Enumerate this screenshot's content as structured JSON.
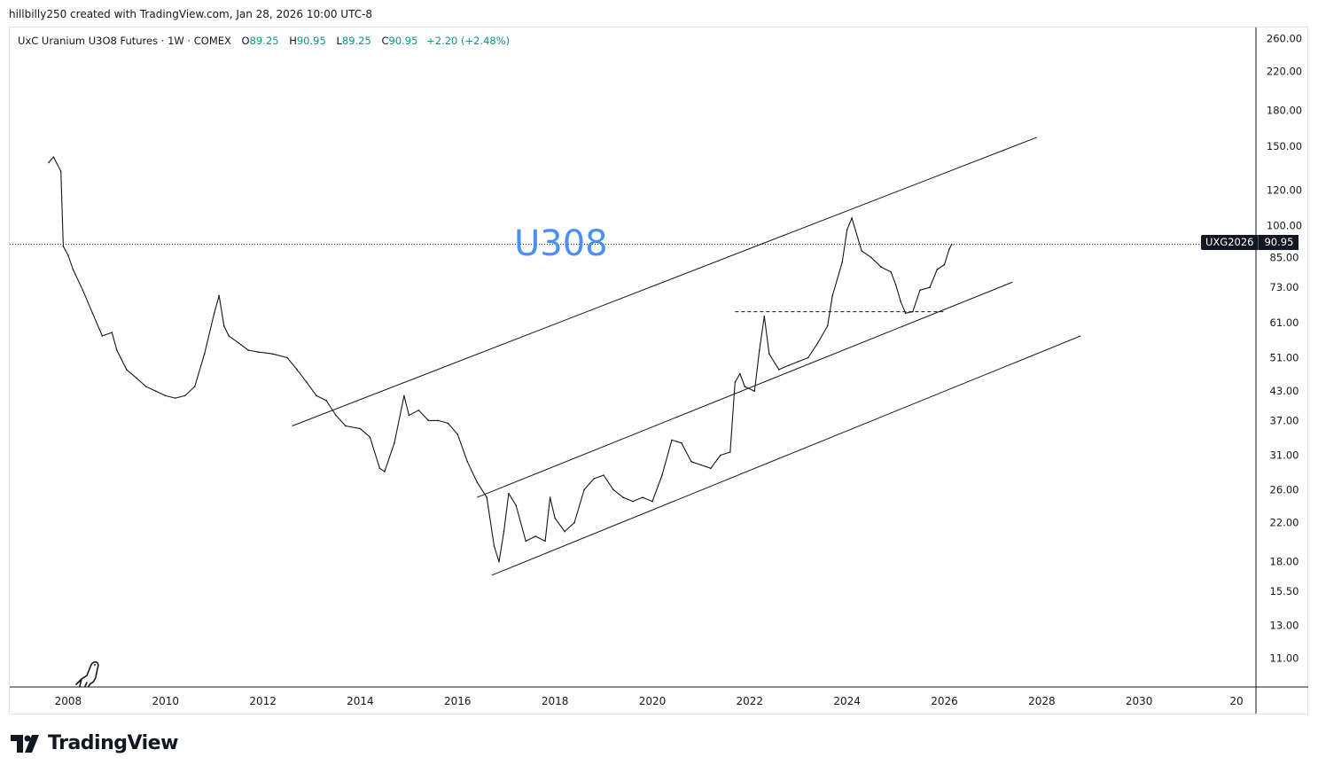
{
  "attribution": "hillbilly250 created with TradingView.com, Jan 28, 2026 10:00 UTC-8",
  "legend": {
    "symbol_name": "UxC Uranium U3O8 Futures",
    "sep1": "·",
    "interval": "1W",
    "sep2": "·",
    "exchange": "COMEX",
    "open_key": "O",
    "open": "89.25",
    "high_key": "H",
    "high": "90.95",
    "low_key": "L",
    "low": "89.25",
    "close_key": "C",
    "close": "90.95",
    "change": "+2.20 (+2.48%)"
  },
  "annotation_text": "U308",
  "price_tag": {
    "symbol": "UXG2026",
    "value": "90.95"
  },
  "logo_text": "TradingView",
  "colors": {
    "accent_text": "#4c8ff0",
    "up": "#089981",
    "line": "#131722"
  },
  "chart_data": {
    "type": "line",
    "scale": "log",
    "x_axis_ticks": [
      "2008",
      "2010",
      "2012",
      "2014",
      "2016",
      "2018",
      "2020",
      "2022",
      "2024",
      "2026",
      "2028",
      "2030",
      "20"
    ],
    "y_axis_ticks": [
      "260.00",
      "220.00",
      "180.00",
      "150.00",
      "120.00",
      "100.00",
      "85.00",
      "73.00",
      "61.00",
      "51.00",
      "43.00",
      "37.00",
      "31.00",
      "26.00",
      "22.00",
      "18.00",
      "15.50",
      "13.00",
      "11.00"
    ],
    "ylim": [
      9.5,
      275
    ],
    "xlim": [
      2006.8,
      2032.4
    ],
    "last_price": 90.95,
    "series": [
      {
        "values": [
          [
            2007.6,
            138
          ],
          [
            2007.7,
            142
          ],
          [
            2007.85,
            132
          ],
          [
            2007.9,
            90
          ],
          [
            2008.0,
            86
          ],
          [
            2008.1,
            80
          ],
          [
            2008.3,
            72
          ],
          [
            2008.5,
            64
          ],
          [
            2008.7,
            57
          ],
          [
            2008.9,
            58
          ],
          [
            2009.0,
            53
          ],
          [
            2009.2,
            48
          ],
          [
            2009.4,
            46
          ],
          [
            2009.6,
            44
          ],
          [
            2009.8,
            43
          ],
          [
            2010.0,
            42
          ],
          [
            2010.2,
            41.5
          ],
          [
            2010.4,
            42
          ],
          [
            2010.6,
            44
          ],
          [
            2010.8,
            52
          ],
          [
            2011.0,
            64
          ],
          [
            2011.1,
            70
          ],
          [
            2011.2,
            60
          ],
          [
            2011.3,
            57
          ],
          [
            2011.5,
            55
          ],
          [
            2011.7,
            53
          ],
          [
            2011.9,
            52.5
          ],
          [
            2012.2,
            52
          ],
          [
            2012.5,
            51
          ],
          [
            2012.7,
            48
          ],
          [
            2012.9,
            45
          ],
          [
            2013.1,
            42
          ],
          [
            2013.3,
            41
          ],
          [
            2013.5,
            38
          ],
          [
            2013.7,
            36
          ],
          [
            2014.0,
            35.5
          ],
          [
            2014.2,
            34
          ],
          [
            2014.4,
            29
          ],
          [
            2014.5,
            28.5
          ],
          [
            2014.7,
            33
          ],
          [
            2014.9,
            42
          ],
          [
            2015.0,
            38
          ],
          [
            2015.2,
            39
          ],
          [
            2015.4,
            37
          ],
          [
            2015.6,
            37
          ],
          [
            2015.8,
            36.5
          ],
          [
            2016.0,
            34.5
          ],
          [
            2016.2,
            30
          ],
          [
            2016.4,
            27
          ],
          [
            2016.6,
            25
          ],
          [
            2016.75,
            19.5
          ],
          [
            2016.85,
            18
          ],
          [
            2016.95,
            21
          ],
          [
            2017.05,
            25.5
          ],
          [
            2017.2,
            24
          ],
          [
            2017.4,
            20
          ],
          [
            2017.6,
            20.5
          ],
          [
            2017.8,
            20
          ],
          [
            2017.9,
            25
          ],
          [
            2018.0,
            22.5
          ],
          [
            2018.2,
            21
          ],
          [
            2018.4,
            22
          ],
          [
            2018.6,
            26
          ],
          [
            2018.8,
            27.5
          ],
          [
            2019.0,
            28
          ],
          [
            2019.2,
            26
          ],
          [
            2019.4,
            25
          ],
          [
            2019.6,
            24.5
          ],
          [
            2019.8,
            25
          ],
          [
            2020.0,
            24.5
          ],
          [
            2020.2,
            28
          ],
          [
            2020.4,
            33.5
          ],
          [
            2020.6,
            33
          ],
          [
            2020.8,
            30
          ],
          [
            2021.0,
            29.5
          ],
          [
            2021.2,
            29
          ],
          [
            2021.4,
            31
          ],
          [
            2021.6,
            31.5
          ],
          [
            2021.7,
            45
          ],
          [
            2021.8,
            47
          ],
          [
            2021.9,
            44
          ],
          [
            2022.1,
            43
          ],
          [
            2022.2,
            53
          ],
          [
            2022.3,
            63
          ],
          [
            2022.4,
            52
          ],
          [
            2022.6,
            48
          ],
          [
            2022.8,
            49
          ],
          [
            2023.0,
            50
          ],
          [
            2023.2,
            51
          ],
          [
            2023.4,
            55
          ],
          [
            2023.6,
            60
          ],
          [
            2023.7,
            70
          ],
          [
            2023.9,
            83
          ],
          [
            2024.0,
            98
          ],
          [
            2024.1,
            104
          ],
          [
            2024.3,
            88
          ],
          [
            2024.5,
            85
          ],
          [
            2024.7,
            81
          ],
          [
            2024.9,
            79
          ],
          [
            2025.0,
            74
          ],
          [
            2025.1,
            68
          ],
          [
            2025.2,
            64
          ],
          [
            2025.35,
            64.5
          ],
          [
            2025.5,
            72
          ],
          [
            2025.7,
            73
          ],
          [
            2025.85,
            80
          ],
          [
            2026.0,
            82
          ],
          [
            2026.1,
            88.75
          ],
          [
            2026.15,
            90.95
          ]
        ]
      }
    ],
    "trendlines": [
      {
        "from": [
          2012.6,
          36.0
        ],
        "to": [
          2027.9,
          157.0
        ]
      },
      {
        "from": [
          2016.4,
          25.0
        ],
        "to": [
          2027.4,
          75.0
        ]
      },
      {
        "from": [
          2016.7,
          16.8
        ],
        "to": [
          2028.8,
          57.0
        ]
      }
    ],
    "horizontal_level": {
      "value": 64.5,
      "from": 2021.7,
      "to": 2026.0
    }
  }
}
